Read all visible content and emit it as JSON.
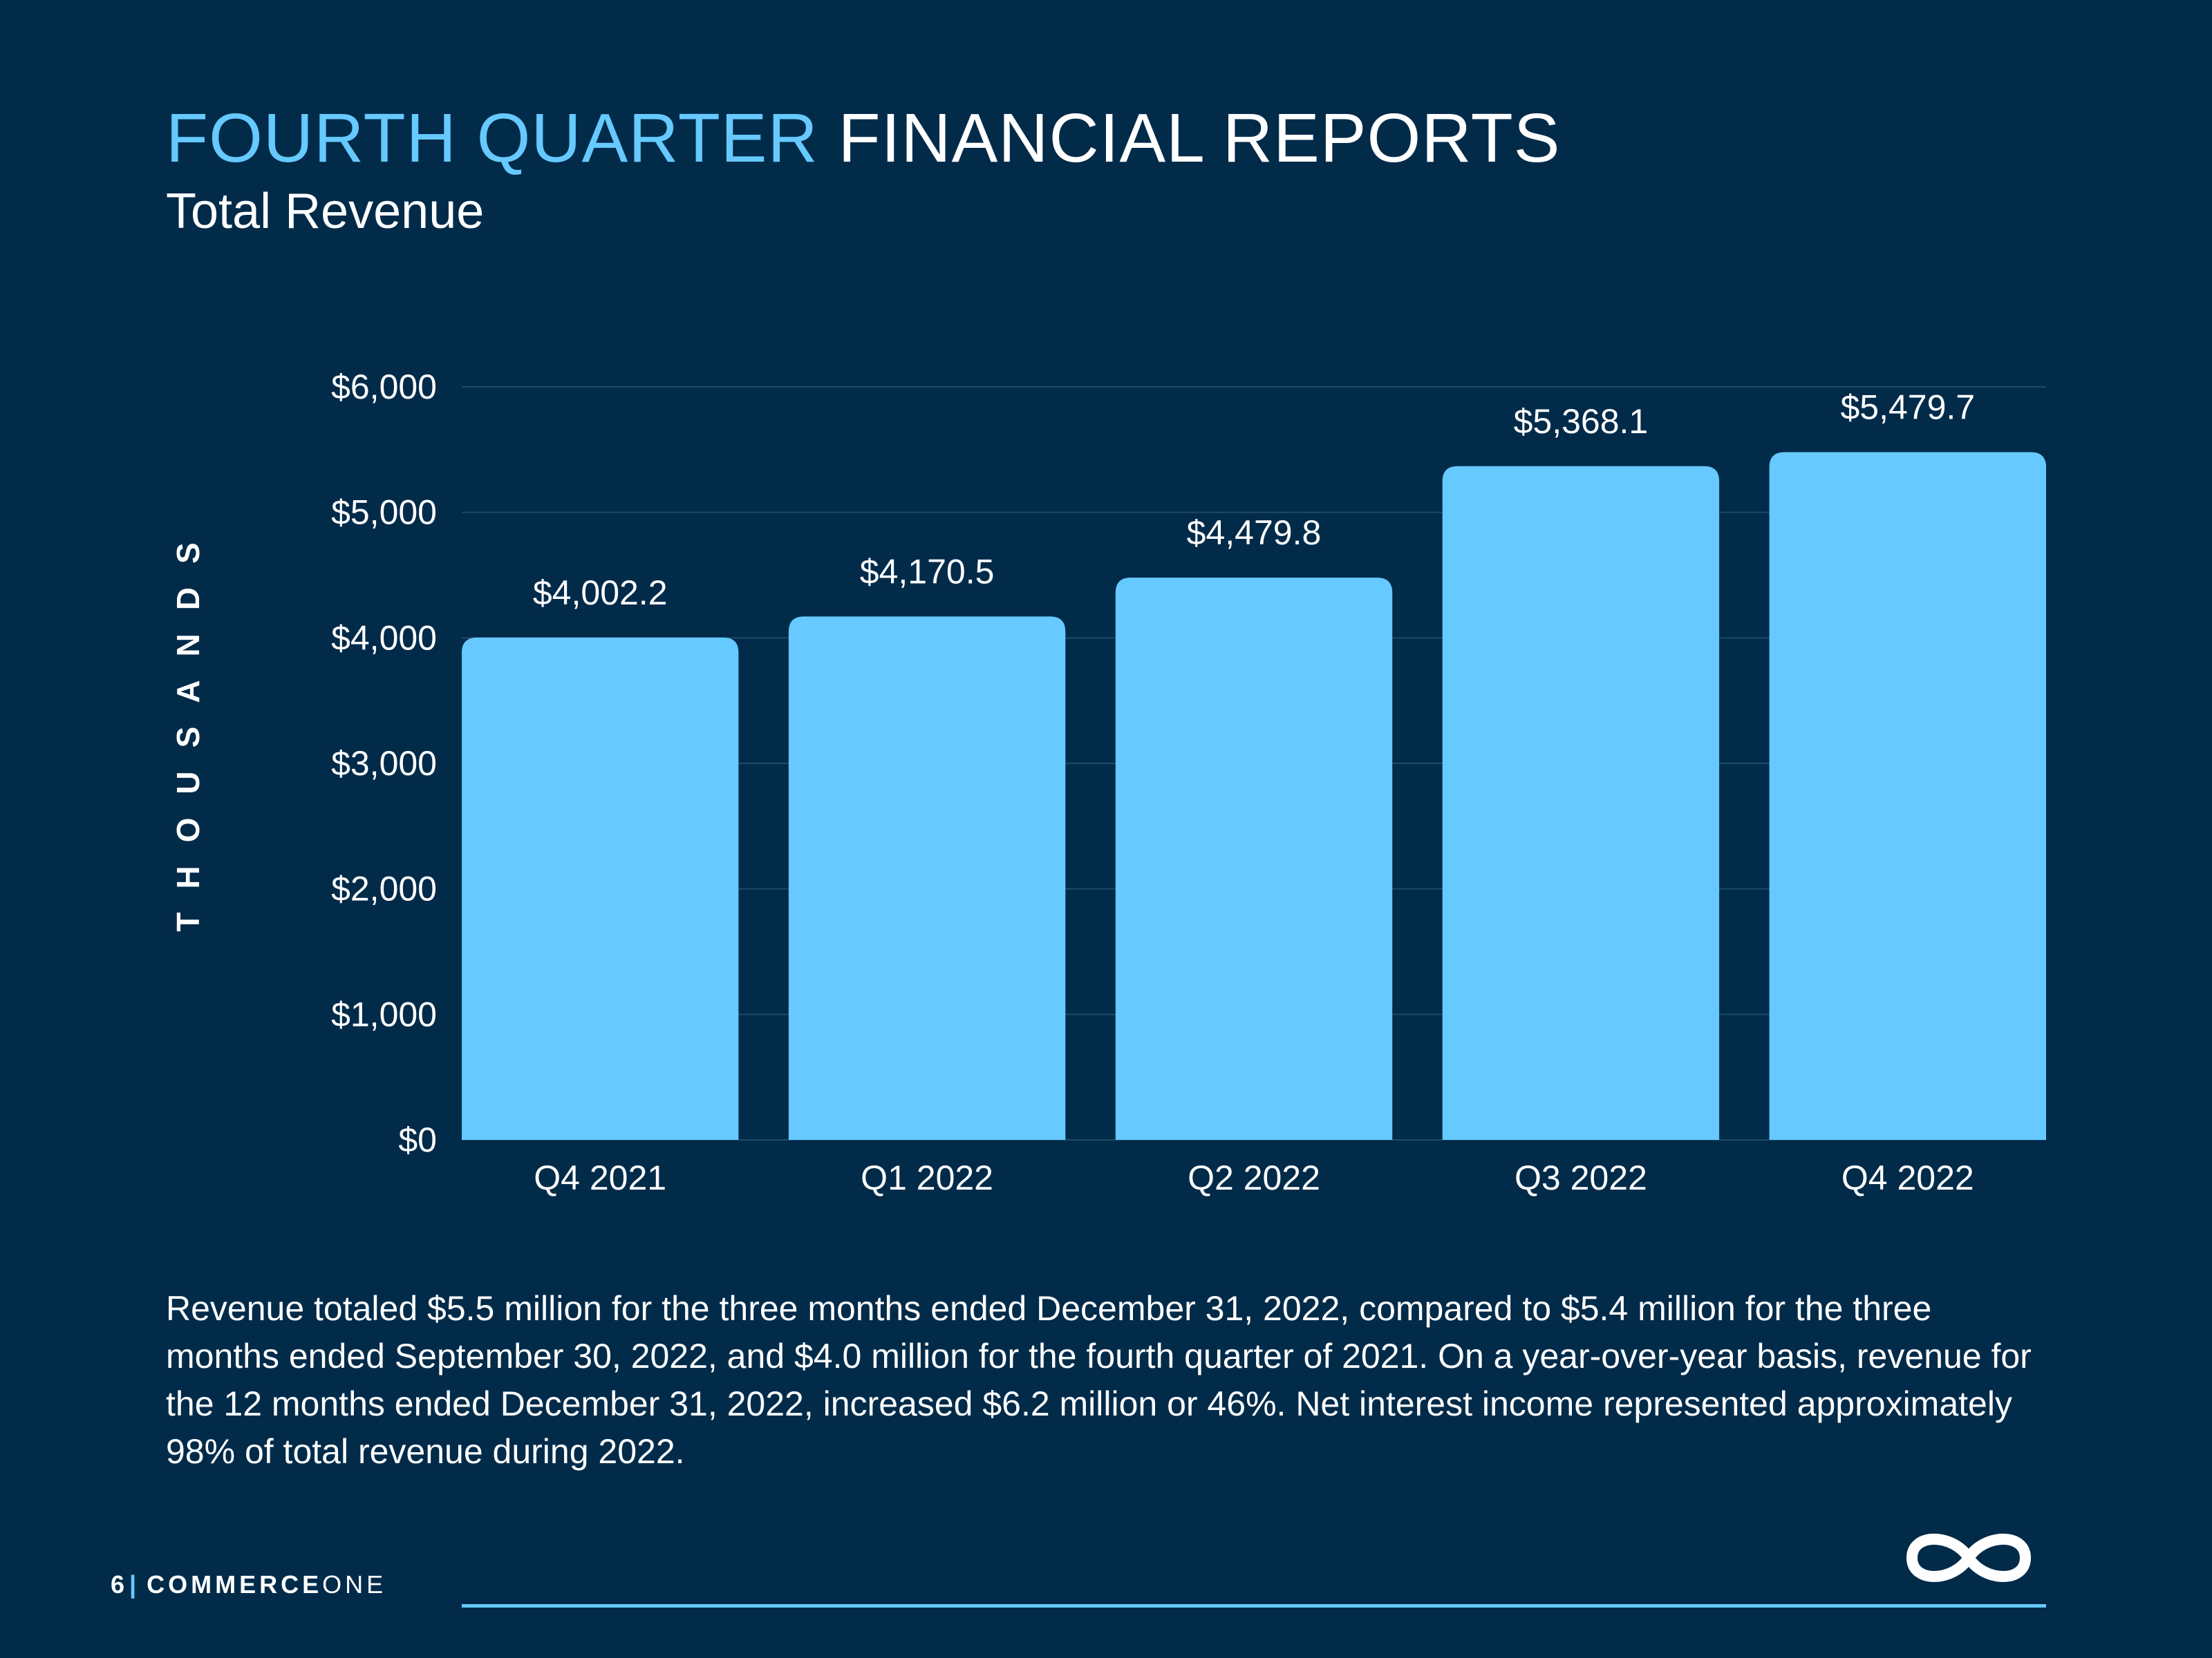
{
  "header": {
    "title_accent": "FOURTH QUARTER",
    "title_rest": "FINANCIAL REPORTS",
    "subtitle": "Total Revenue"
  },
  "chart_data": {
    "type": "bar",
    "categories": [
      "Q4 2021",
      "Q1 2022",
      "Q2 2022",
      "Q3 2022",
      "Q4 2022"
    ],
    "values": [
      4002.2,
      4170.5,
      4479.8,
      5368.1,
      5479.7
    ],
    "data_labels": [
      "$4,002.2",
      "$4,170.5",
      "$4,479.8",
      "$5,368.1",
      "$5,479.7"
    ],
    "ylabel": "THOUSANDS",
    "ylim": [
      0,
      6000
    ],
    "yticks": [
      0,
      1000,
      2000,
      3000,
      4000,
      5000,
      6000
    ],
    "ytick_labels": [
      "$0",
      "$1,000",
      "$2,000",
      "$3,000",
      "$4,000",
      "$5,000",
      "$6,000"
    ],
    "grid": true,
    "legend": "none",
    "bar_color": "#66c9ff"
  },
  "description": "Revenue totaled $5.5 million for the three months ended December 31, 2022, compared to $5.4 million for the three months ended September 30, 2022, and $4.0 million for the fourth quarter of 2021. On a year-over-year basis, revenue for the 12 months ended December 31, 2022, increased $6.2 million or 46%. Net interest income represented approximately 98% of total revenue during 2022.",
  "footer": {
    "page_number": "6",
    "separator": "|",
    "brand_bold": "COMMERCE",
    "brand_light": "ONE",
    "logo_icon": "infinity-icon"
  },
  "colors": {
    "background": "#022b4a",
    "accent": "#66c9ff",
    "text": "#ffffff",
    "gridline": "#1d4a66"
  }
}
